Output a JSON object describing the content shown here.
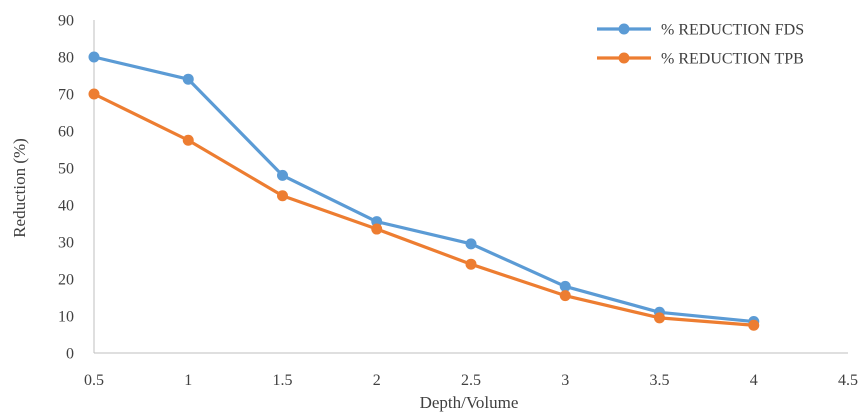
{
  "chart_data": {
    "type": "line",
    "xlabel": "Depth/Volume",
    "ylabel": "Reduction (%)",
    "xlim": [
      0.5,
      4.5
    ],
    "ylim": [
      0,
      90
    ],
    "x_ticks": [
      "0.5",
      "1",
      "1.5",
      "2",
      "2.5",
      "3",
      "3.5",
      "4",
      "4.5"
    ],
    "y_ticks": [
      "0",
      "10",
      "20",
      "30",
      "40",
      "50",
      "60",
      "70",
      "80",
      "90"
    ],
    "x": [
      0.5,
      1,
      1.5,
      2,
      2.5,
      3,
      3.5,
      4
    ],
    "grid": false,
    "legend_position": "top-right",
    "series": [
      {
        "name": "% REDUCTION FDS",
        "color": "#5B9BD5",
        "values": [
          80,
          74,
          48,
          35.5,
          29.5,
          18,
          11,
          8.5
        ]
      },
      {
        "name": "% REDUCTION TPB",
        "color": "#ED7D31",
        "values": [
          70,
          57.5,
          42.5,
          33.5,
          24,
          15.5,
          9.5,
          7.5
        ]
      }
    ]
  }
}
